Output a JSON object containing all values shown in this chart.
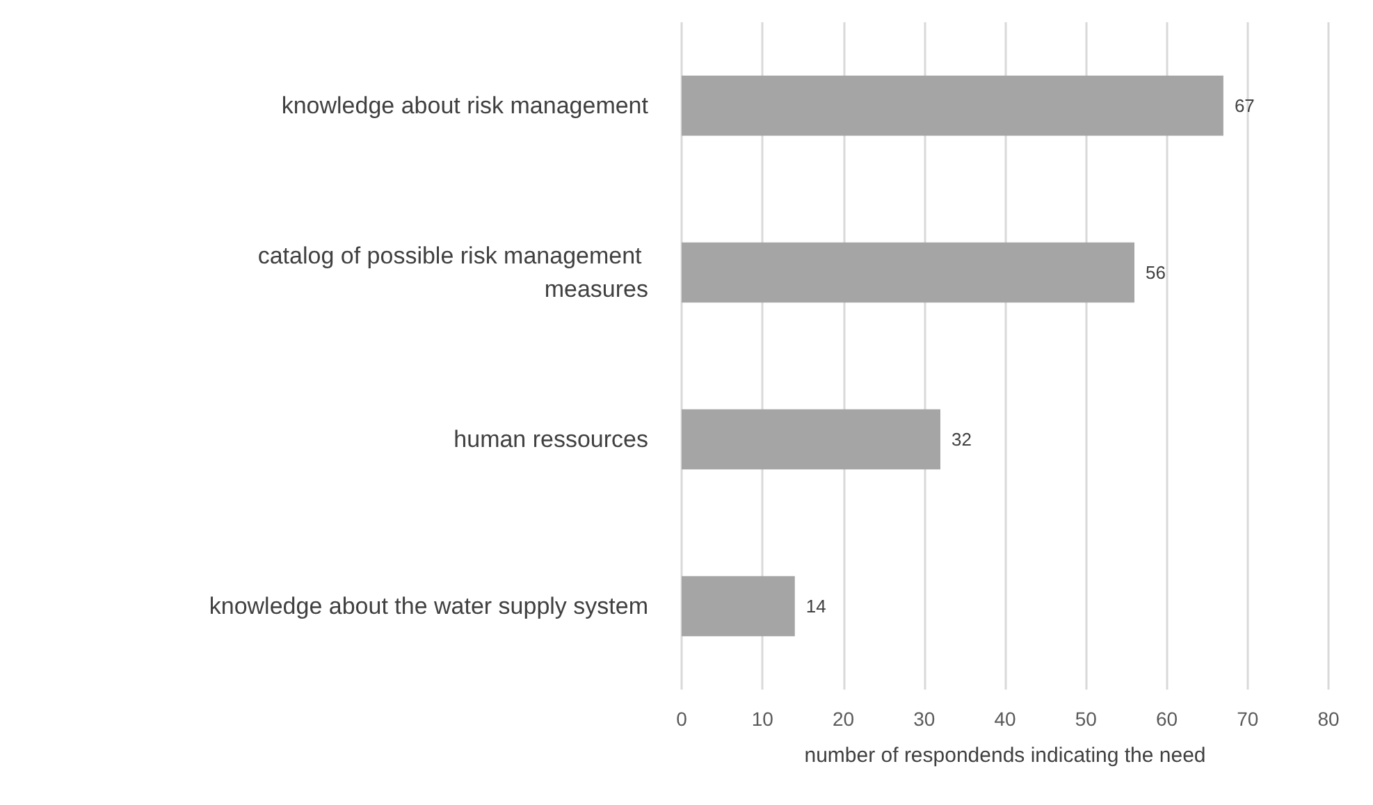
{
  "chart_data": {
    "type": "bar",
    "orientation": "horizontal",
    "xlabel": "number of respondends indicating the need",
    "categories": [
      "knowledge about risk management",
      "catalog of possible risk management measures",
      "human ressources",
      "knowledge about the water supply system"
    ],
    "values": [
      67,
      56,
      32,
      14
    ],
    "color": "#a5a5a5",
    "data_labels": true,
    "xlim": [
      0,
      80
    ],
    "xticks": [
      0,
      10,
      20,
      30,
      40,
      50,
      60,
      70,
      80
    ],
    "grid": "x"
  }
}
